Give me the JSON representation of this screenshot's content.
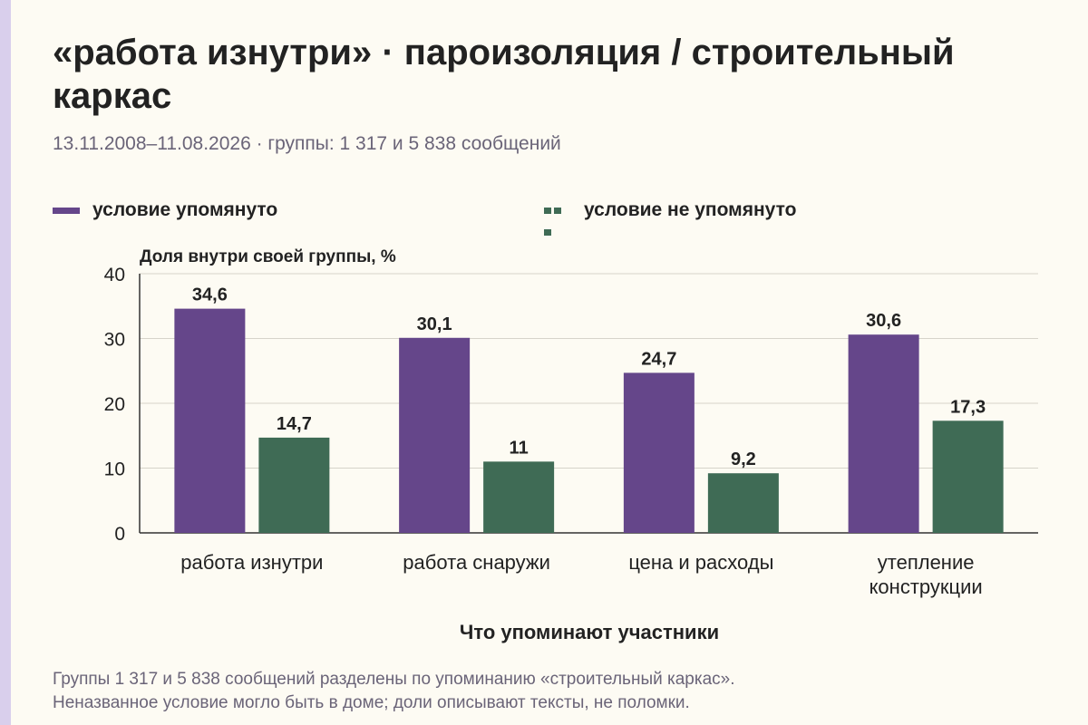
{
  "title": "«работа изнутри» · пароизоляция / строительный каркас",
  "subtitle": "13.11.2008–11.08.2026 · группы: 1 317 и 5 838 сообщений",
  "colors": {
    "series1": "#65468a",
    "series2": "#3f6b55",
    "grid": "#d6d3ca",
    "axis": "#333333"
  },
  "legend": [
    {
      "label": "условие упомянуто",
      "style": "solid"
    },
    {
      "label": "условие не упомянуто",
      "style": "dashed"
    }
  ],
  "note": [
    "Группы 1 317 и 5 838 сообщений разделены по упоминанию «строительный каркас».",
    "Неназванное условие могло быть в доме; доли описывают тексты, не поломки."
  ],
  "chart_data": {
    "type": "bar",
    "ylabel": "Доля внутри своей группы, %",
    "xlabel": "Что упоминают участники",
    "ylim": [
      0,
      40
    ],
    "yticks": [
      0,
      10,
      20,
      30,
      40
    ],
    "grid": true,
    "legend_position": "top",
    "categories": [
      [
        "работа изнутри"
      ],
      [
        "работа снаружи"
      ],
      [
        "цена и расходы"
      ],
      [
        "утепление",
        "конструкции"
      ]
    ],
    "series": [
      {
        "name": "условие упомянуто",
        "values": [
          34.6,
          30.1,
          24.7,
          30.6
        ],
        "labels": [
          "34,6",
          "30,1",
          "24,7",
          "30,6"
        ]
      },
      {
        "name": "условие не упомянуто",
        "values": [
          14.7,
          11,
          9.2,
          17.3
        ],
        "labels": [
          "14,7",
          "11",
          "9,2",
          "17,3"
        ]
      }
    ]
  }
}
